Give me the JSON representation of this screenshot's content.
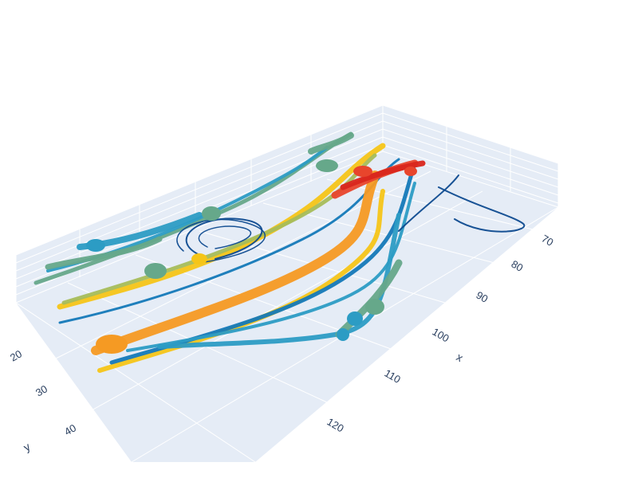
{
  "chart_data": {
    "type": "streamtube",
    "title": "",
    "colorscale": [
      "#0d4a8f",
      "#1479b8",
      "#2c9cc4",
      "#66a88a",
      "#a6bd5a",
      "#f5c518",
      "#f59a23",
      "#e8452c",
      "#d9261c"
    ],
    "scene_bgcolor": "#e5ecf6",
    "grid_color": "#ffffff",
    "x_axis": {
      "title": "x",
      "ticks": [
        "70",
        "80",
        "90",
        "100",
        "110",
        "120"
      ]
    },
    "y_axis": {
      "title": "y",
      "ticks": [
        "20",
        "30",
        "40"
      ]
    },
    "z_axis": {
      "title": "",
      "ticks": []
    }
  }
}
